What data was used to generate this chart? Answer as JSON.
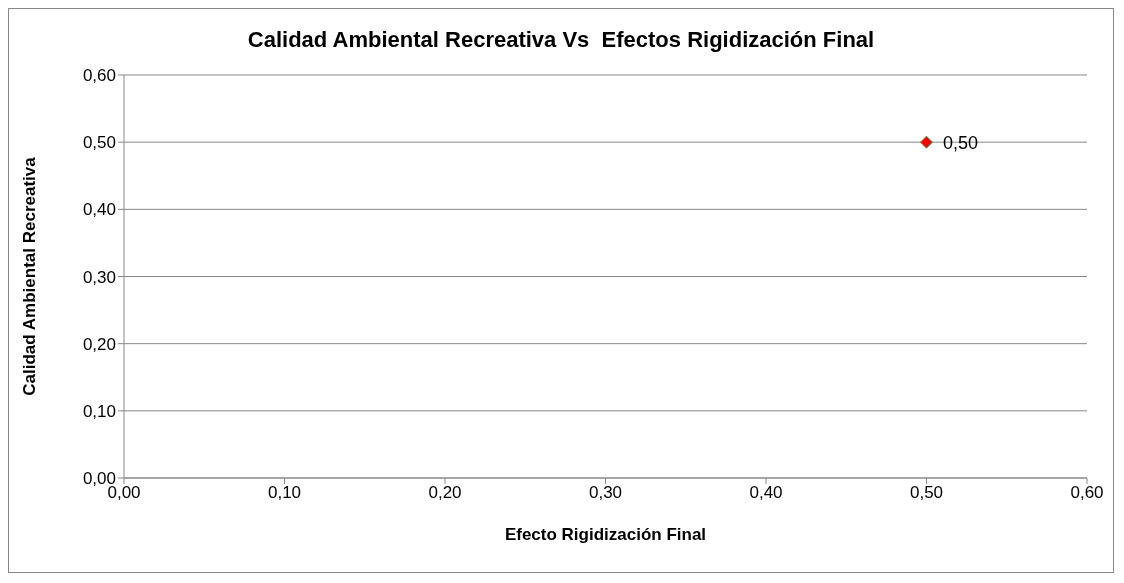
{
  "chart_data": {
    "type": "scatter",
    "title": "Calidad Ambiental Recreativa Vs  Efectos Rigidización Final",
    "xlabel": "Efecto Rigidización Final",
    "ylabel": "Calidad Ambiental Recreativa",
    "x": [
      0.5
    ],
    "series": [
      {
        "color": "#ff0000",
        "values": [
          0.5
        ],
        "value_labels": [
          "0,50"
        ]
      }
    ],
    "xlim": [
      0,
      0.6
    ],
    "ylim": [
      0,
      0.6
    ],
    "xticks": [
      {
        "value": 0,
        "label": "0,00"
      },
      {
        "value": 0.1,
        "label": "0,10"
      },
      {
        "value": 0.2,
        "label": "0,20"
      },
      {
        "value": 0.3,
        "label": "0,30"
      },
      {
        "value": 0.4,
        "label": "0,40"
      },
      {
        "value": 0.5,
        "label": "0,50"
      },
      {
        "value": 0.6,
        "label": "0,60"
      }
    ],
    "yticks": [
      {
        "value": 0,
        "label": "0,00"
      },
      {
        "value": 0.1,
        "label": "0,10"
      },
      {
        "value": 0.2,
        "label": "0,20"
      },
      {
        "value": 0.3,
        "label": "0,30"
      },
      {
        "value": 0.4,
        "label": "0,40"
      },
      {
        "value": 0.5,
        "label": "0,50"
      },
      {
        "value": 0.6,
        "label": "0,60"
      }
    ],
    "grid": "y",
    "legend": false,
    "marker": "diamond"
  }
}
